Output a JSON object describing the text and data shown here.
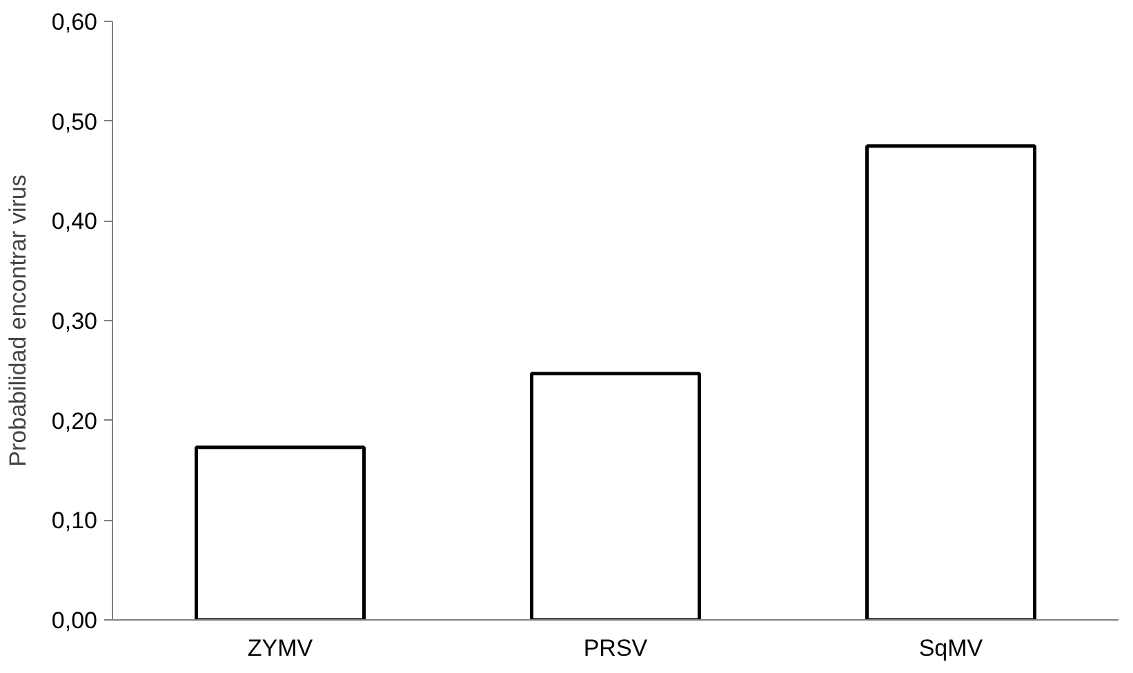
{
  "chart_data": {
    "type": "bar",
    "ylabel": "Probabilidad encontrar virus",
    "categories": [
      "ZYMV",
      "PRSV",
      "SqMV"
    ],
    "values": [
      0.173,
      0.247,
      0.475
    ],
    "color": "#ffffff",
    "ylim": [
      0,
      0.6
    ],
    "yticks": [
      {
        "value": 0,
        "label": "0,00"
      },
      {
        "value": 0.1,
        "label": "0,10"
      },
      {
        "value": 0.2,
        "label": "0,20"
      },
      {
        "value": 0.3,
        "label": "0,30"
      },
      {
        "value": 0.4,
        "label": "0,40"
      },
      {
        "value": 0.5,
        "label": "0,50"
      },
      {
        "value": 0.6,
        "label": "0,60"
      }
    ],
    "grid": false
  }
}
